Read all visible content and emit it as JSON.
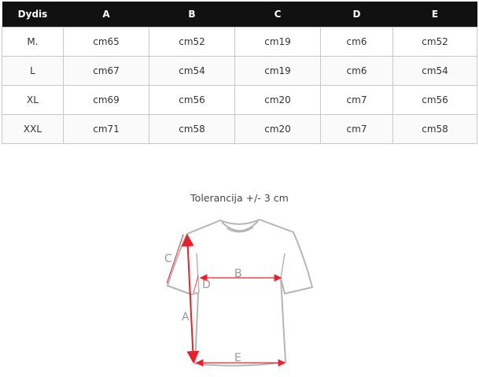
{
  "table": {
    "headers": [
      "Dydis",
      "A",
      "B",
      "C",
      "D",
      "E"
    ],
    "rows": [
      [
        "M.",
        "cm65",
        "cm52",
        "cm19",
        "cm6",
        "cm52"
      ],
      [
        "L",
        "cm67",
        "cm54",
        "cm19",
        "cm6",
        "cm54"
      ],
      [
        "XL",
        "cm69",
        "cm56",
        "cm20",
        "cm7",
        "cm56"
      ],
      [
        "XXL",
        "cm71",
        "cm58",
        "cm20",
        "cm7",
        "cm58"
      ]
    ]
  },
  "diagram": {
    "tolerance": "Tolerancija +/- 3 cm",
    "labels": {
      "A": "A",
      "B": "B",
      "C": "C",
      "D": "D",
      "E": "E"
    },
    "arrow_color": "#e8202a",
    "outline_color": "#b5b5b5"
  }
}
